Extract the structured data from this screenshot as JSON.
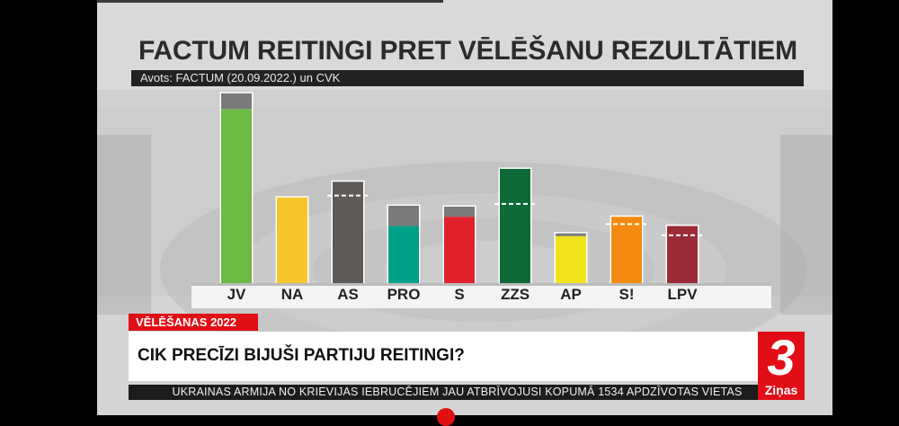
{
  "broadcast": {
    "title": "FACTUM REITINGI PRET VĒLĒŠANU REZULTĀTIEM",
    "source": "Avots: FACTUM (20.09.2022.) un CVK",
    "section_tag": "VĒLĒŠANAS 2022",
    "headline": "CIK PRECĪZI BIJUŠI PARTIJU REITINGI?",
    "ticker": "UKRAINAS ARMIJA NO KRIEVIJAS IEBRUCĒJIEM JAU ATBRĪVOJUSI KOPUMĀ 1534 APDZĪVOTAS VIETAS",
    "logo_number": "3",
    "logo_word": "Ziņas"
  },
  "colors": {
    "background": "#d3d3d3",
    "accent_red": "#e10e17",
    "title_text": "#2b2b2b",
    "rating_overlay": "#7a7a7a"
  },
  "chart_data": {
    "type": "bar",
    "title": "FACTUM REITINGI PRET VĒLĒŠANU REZULTĀTIEM",
    "xlabel": "",
    "ylabel": "",
    "ylim": [
      0,
      20
    ],
    "grid": false,
    "legend": "none",
    "categories": [
      "JV",
      "NA",
      "AS",
      "PRO",
      "S",
      "ZZS",
      "AP",
      "S!",
      "LPV"
    ],
    "colors": [
      "#6cbb45",
      "#f7c52b",
      "#5e5a58",
      "#00a088",
      "#e0202a",
      "#0e6a36",
      "#f2e21a",
      "#f58a12",
      "#9a2b37"
    ],
    "series": [
      {
        "values": [
          18.9,
          9.3,
          11.0,
          6.2,
          7.2,
          12.4,
          5.1,
          7.2,
          6.2
        ]
      },
      {
        "values": [
          20.6,
          9.3,
          9.5,
          8.4,
          8.3,
          8.6,
          5.4,
          6.4,
          5.2
        ]
      }
    ]
  }
}
